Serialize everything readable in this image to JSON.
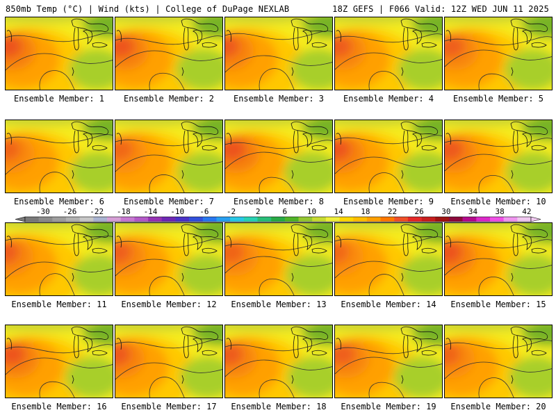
{
  "header": {
    "left": "850mb Temp (°C) | Wind (kts) | College of DuPage NEXLAB",
    "right": "18Z GEFS | F066 Valid: 12Z WED JUN 11 2025"
  },
  "member_label_prefix": "Ensemble Member:",
  "members": [
    1,
    2,
    3,
    4,
    5,
    6,
    7,
    8,
    9,
    10,
    11,
    12,
    13,
    14,
    15,
    16,
    17,
    18,
    19,
    20
  ],
  "colorbar": {
    "tick_labels": [
      "-30",
      "-26",
      "-22",
      "-18",
      "-14",
      "-10",
      "-6",
      "-2",
      "2",
      "6",
      "10",
      "14",
      "18",
      "22",
      "26",
      "30",
      "34",
      "38",
      "42"
    ],
    "colors": [
      "#7a7a7a",
      "#8c8c8c",
      "#9f9f9f",
      "#b2b2b2",
      "#c8c8c8",
      "#aab4d2",
      "#d7a0d7",
      "#c878d2",
      "#b45ac8",
      "#9632b4",
      "#6e28b4",
      "#4b32c8",
      "#3250dc",
      "#2878f0",
      "#28a0f0",
      "#28c8e6",
      "#28d2b4",
      "#28be78",
      "#28aa46",
      "#50b428",
      "#96c832",
      "#c8dc32",
      "#f0f03c",
      "#ffd700",
      "#ffbe00",
      "#ffa000",
      "#ff7800",
      "#f05028",
      "#e62828",
      "#c81e1e",
      "#a01414",
      "#8c0a3c",
      "#b40a8c",
      "#dc28c8",
      "#f050e6",
      "#f096f0",
      "#f0c8f0"
    ]
  }
}
